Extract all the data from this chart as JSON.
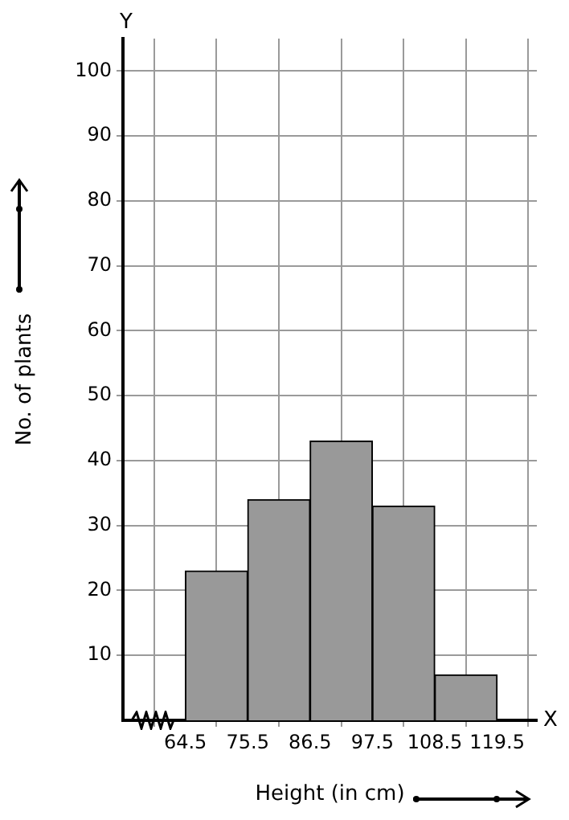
{
  "chart_data": {
    "type": "histogram",
    "xlabel": "Height (in cm)",
    "ylabel": "No. of plants",
    "bins": [
      64.5,
      75.5,
      86.5,
      97.5,
      108.5,
      119.5
    ],
    "values": [
      23,
      34,
      43,
      33,
      7
    ],
    "color": "#999999",
    "xlim": [
      53.5,
      126.5
    ],
    "xticks": [
      64.5,
      75.5,
      86.5,
      97.5,
      108.5,
      119.5
    ],
    "ylim": [
      0,
      105
    ],
    "yticks": [
      10,
      20,
      30,
      40,
      50,
      60,
      70,
      80,
      90,
      100
    ],
    "annotations": [
      "Y",
      "X"
    ],
    "grid": true
  }
}
